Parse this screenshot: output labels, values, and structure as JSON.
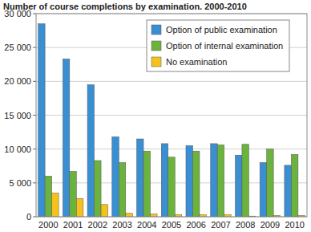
{
  "chart_data": {
    "type": "bar",
    "title": "Number of course completions by examination. 2000-2010",
    "categories": [
      "2000",
      "2001",
      "2002",
      "2003",
      "2004",
      "2005",
      "2006",
      "2007",
      "2008",
      "2009",
      "2010"
    ],
    "series": [
      {
        "name": "Option of public examination",
        "color": "#3a8fd3",
        "values": [
          28500,
          23300,
          19500,
          11800,
          11500,
          10800,
          10500,
          10800,
          9100,
          8000,
          7600
        ]
      },
      {
        "name": "Option of internal examination",
        "color": "#6cb33e",
        "values": [
          6000,
          6700,
          8300,
          8000,
          9700,
          8800,
          9700,
          10600,
          10700,
          10000,
          9200
        ]
      },
      {
        "name": "No examination",
        "color": "#f5c21b",
        "values": [
          3500,
          2700,
          1800,
          500,
          400,
          300,
          300,
          300,
          100,
          200,
          200
        ]
      }
    ],
    "ylim": [
      0,
      30000
    ],
    "yticks": [
      0,
      {
        "value": 5000,
        "label": "5 000"
      },
      {
        "value": 10000,
        "label": "10 000"
      },
      {
        "value": 15000,
        "label": "15 000"
      },
      {
        "value": 20000,
        "label": "20 000"
      },
      {
        "value": 25000,
        "label": "25 000"
      },
      {
        "value": 30000,
        "label": "30 000"
      }
    ],
    "grid": true,
    "legend": "top-right"
  }
}
